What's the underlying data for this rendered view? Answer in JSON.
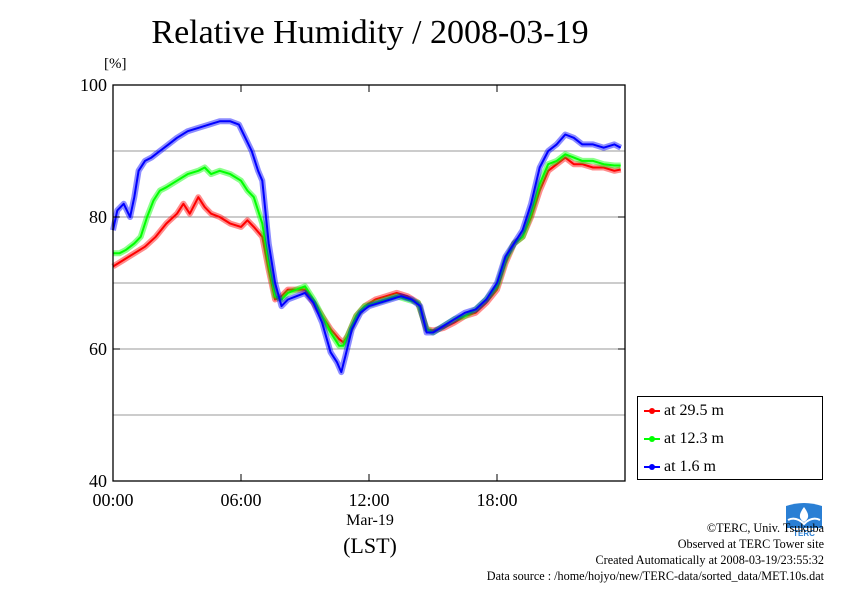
{
  "title": "Relative Humidity / 2008-03-19",
  "y_unit": "[%]",
  "x_date_label": "Mar-19",
  "x_zone_label": "(LST)",
  "legend": [
    {
      "label": "at 29.5 m",
      "color": "#ff0000"
    },
    {
      "label": "at 12.3 m",
      "color": "#00ff00"
    },
    {
      "label": "at 1.6 m",
      "color": "#0000ff"
    }
  ],
  "credits": {
    "copyright": "©TERC, Univ. Tsukuba",
    "site": "Observed at TERC Tower site",
    "created": "Created Automatically at 2008-03-19/23:55:32",
    "source": "Data source : /home/hojyo/new/TERC-data/sorted_data/MET.10s.dat"
  },
  "logo_text": "TERC",
  "chart_data": {
    "type": "line",
    "title": "Relative Humidity / 2008-03-19",
    "ylabel": "[%]",
    "xlabel": "Mar-19 (LST)",
    "xlim": [
      0,
      24
    ],
    "ylim": [
      40,
      100
    ],
    "x_ticks": [
      {
        "value": 0,
        "label": "00:00"
      },
      {
        "value": 6,
        "label": "06:00"
      },
      {
        "value": 12,
        "label": "12:00"
      },
      {
        "value": 18,
        "label": "18:00"
      }
    ],
    "y_ticks": [
      {
        "value": 40,
        "label": "40"
      },
      {
        "value": 60,
        "label": "60"
      },
      {
        "value": 80,
        "label": "80"
      },
      {
        "value": 100,
        "label": "100"
      }
    ],
    "y_gridlines": [
      50,
      60,
      70,
      80,
      90
    ],
    "legend_position": "bottom-right, outside plot",
    "series": [
      {
        "name": "at 29.5 m",
        "color": "#ff0000",
        "x": [
          0,
          0.5,
          1,
          1.5,
          2,
          2.5,
          3,
          3.3,
          3.6,
          4,
          4.3,
          4.6,
          5,
          5.5,
          6,
          6.3,
          6.6,
          7,
          7.3,
          7.6,
          7.9,
          8.2,
          8.6,
          9,
          9.4,
          9.8,
          10.2,
          10.6,
          10.8,
          11,
          11.4,
          11.8,
          12.3,
          12.8,
          13.3,
          13.8,
          14.3,
          14.7,
          15,
          15.5,
          16,
          16.5,
          17,
          17.5,
          18,
          18.4,
          18.8,
          19.2,
          19.6,
          20,
          20.4,
          20.8,
          21.2,
          21.6,
          22,
          22.5,
          23,
          23.5,
          23.8
        ],
        "y": [
          72.5,
          73.5,
          74.5,
          75.5,
          77,
          79,
          80.5,
          82,
          80.5,
          83,
          81.5,
          80.5,
          80,
          79,
          78.5,
          79.5,
          78.5,
          77,
          72,
          67.5,
          68,
          69,
          69,
          69,
          67,
          65,
          63,
          61.5,
          61,
          62,
          65,
          66.5,
          67.5,
          68,
          68.5,
          68,
          67,
          63,
          62.8,
          63.2,
          64,
          65,
          65.5,
          67,
          69,
          73,
          76,
          77,
          80,
          84,
          87,
          88,
          89,
          88,
          88,
          87.5,
          87.5,
          87,
          87.2
        ]
      },
      {
        "name": "at 12.3 m",
        "color": "#00ff00",
        "x": [
          0,
          0.3,
          0.6,
          1,
          1.3,
          1.6,
          1.9,
          2.2,
          2.5,
          3,
          3.5,
          4,
          4.3,
          4.6,
          5,
          5.5,
          6,
          6.3,
          6.6,
          7,
          7.3,
          7.6,
          7.9,
          8.2,
          8.6,
          9,
          9.4,
          9.8,
          10.2,
          10.6,
          10.8,
          11,
          11.4,
          11.8,
          12.3,
          12.8,
          13.3,
          13.8,
          14.3,
          14.7,
          15,
          15.5,
          16,
          16.5,
          17,
          17.5,
          18,
          18.4,
          18.8,
          19.2,
          19.6,
          20,
          20.4,
          20.8,
          21.2,
          21.6,
          22,
          22.5,
          23,
          23.5,
          23.8
        ],
        "y": [
          74.5,
          74.5,
          75,
          76,
          77,
          80,
          82.5,
          84,
          84.5,
          85.5,
          86.5,
          87,
          87.5,
          86.5,
          87,
          86.5,
          85.5,
          84,
          83,
          79,
          73,
          68,
          67.5,
          68.5,
          69,
          69.5,
          67.5,
          65,
          62.5,
          60.5,
          60.5,
          62,
          65,
          66.5,
          67,
          67.5,
          68,
          67.5,
          67,
          63,
          62.5,
          63.5,
          64.5,
          65,
          66,
          67.5,
          69.5,
          73.5,
          76,
          77,
          80.5,
          85,
          88,
          88.5,
          89.5,
          89,
          88.5,
          88.5,
          88,
          87.8,
          87.8
        ]
      },
      {
        "name": "at 1.6 m",
        "color": "#0000ff",
        "x": [
          0,
          0.2,
          0.5,
          0.8,
          1,
          1.2,
          1.5,
          1.8,
          2.2,
          2.6,
          3,
          3.5,
          4,
          4.5,
          5,
          5.5,
          5.9,
          6.2,
          6.5,
          6.8,
          7,
          7.3,
          7.6,
          7.9,
          8.2,
          8.6,
          9,
          9.4,
          9.8,
          10.2,
          10.5,
          10.7,
          10.9,
          11.2,
          11.6,
          12,
          12.5,
          13,
          13.5,
          14,
          14.4,
          14.7,
          15,
          15.5,
          16,
          16.5,
          17,
          17.5,
          18,
          18.4,
          18.8,
          19.2,
          19.6,
          20,
          20.4,
          20.8,
          21.2,
          21.6,
          22,
          22.5,
          23,
          23.5,
          23.8
        ],
        "y": [
          78,
          81,
          82,
          80,
          83,
          87,
          88.5,
          89,
          90,
          91,
          92,
          93,
          93.5,
          94,
          94.5,
          94.5,
          94,
          92,
          90,
          87,
          85.5,
          76,
          70,
          66.5,
          67.5,
          68,
          68.5,
          67,
          64,
          59.5,
          58,
          56.5,
          59,
          63,
          65.5,
          66.5,
          67,
          67.5,
          68,
          67.5,
          66.5,
          62.5,
          62.5,
          63.5,
          64.5,
          65.5,
          66,
          67.5,
          70,
          74,
          76,
          78,
          82,
          87.5,
          90,
          91,
          92.5,
          92,
          91,
          91,
          90.5,
          91,
          90.5
        ]
      }
    ]
  }
}
